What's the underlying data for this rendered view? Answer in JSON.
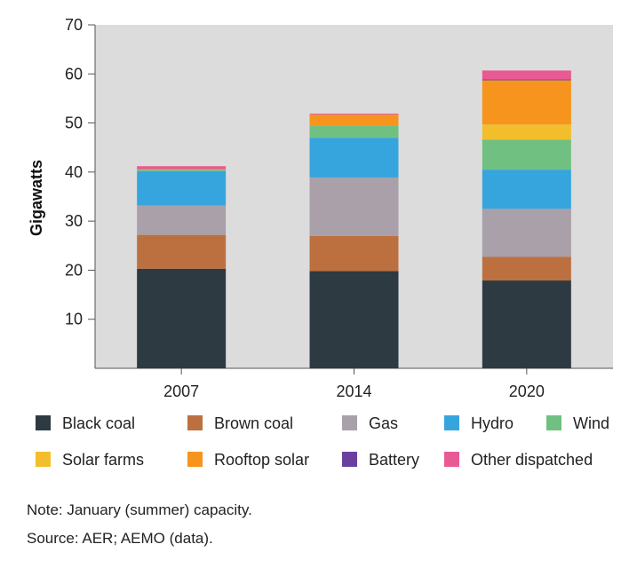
{
  "chart_data": {
    "type": "bar",
    "stacked": true,
    "categories": [
      "2007",
      "2014",
      "2020"
    ],
    "ylabel": "Gigawatts",
    "xlabel": "",
    "title": "",
    "ylim": [
      0,
      70
    ],
    "yticks": [
      10,
      20,
      30,
      40,
      50,
      60,
      70
    ],
    "grid": false,
    "legend_position": "bottom",
    "series": [
      {
        "name": "Black coal",
        "color": "#2d3a42",
        "values": [
          20.3,
          19.8,
          17.9
        ]
      },
      {
        "name": "Brown coal",
        "color": "#bd703f",
        "values": [
          6.9,
          7.2,
          4.8
        ]
      },
      {
        "name": "Gas",
        "color": "#a9a0a9",
        "values": [
          6.0,
          11.9,
          9.8
        ]
      },
      {
        "name": "Hydro",
        "color": "#36a5dd",
        "values": [
          7.0,
          8.1,
          8.0
        ]
      },
      {
        "name": "Wind",
        "color": "#70c082",
        "values": [
          0.3,
          2.5,
          6.1
        ]
      },
      {
        "name": "Solar farms",
        "color": "#f2be2c",
        "values": [
          0.0,
          0.0,
          3.1
        ]
      },
      {
        "name": "Rooftop solar",
        "color": "#f7941e",
        "values": [
          0.1,
          2.2,
          9.0
        ]
      },
      {
        "name": "Battery",
        "color": "#6b3fa0",
        "values": [
          0.0,
          0.0,
          0.2
        ]
      },
      {
        "name": "Other dispatched",
        "color": "#e95a95",
        "values": [
          0.6,
          0.2,
          1.8
        ]
      }
    ]
  },
  "notes": {
    "note": "Note: January (summer) capacity.",
    "source": "Source: AER; AEMO (data)."
  }
}
